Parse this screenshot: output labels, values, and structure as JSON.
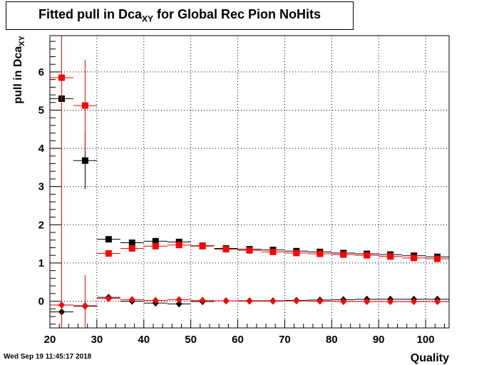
{
  "title": {
    "prefix": "Fitted pull in Dca",
    "sub": "XY",
    "suffix": " for Global Rec Pion NoHits"
  },
  "timestamp": "Wed Sep 19 11:45:17 2018",
  "chart_data": {
    "type": "scatter",
    "title": "Fitted pull in Dca_XY for Global Rec Pion NoHits",
    "xlabel": "Quality",
    "ylabel": "pull in Dca",
    "ylabel_sub": "XY",
    "xlim": [
      20,
      105
    ],
    "ylim": [
      -0.7,
      6.95
    ],
    "xticks": [
      20,
      30,
      40,
      50,
      60,
      70,
      80,
      90,
      100
    ],
    "yticks": [
      0,
      1,
      2,
      3,
      4,
      5,
      6
    ],
    "grid": true,
    "colors": {
      "black": "#000000",
      "red": "#ff0000"
    },
    "series": [
      {
        "marker": "square",
        "color": "#000000",
        "points": [
          {
            "x": 22.5,
            "y": 5.3,
            "err": 0.0
          },
          {
            "x": 27.5,
            "y": 3.68,
            "err": 0.75
          },
          {
            "x": 32.5,
            "y": 1.62,
            "err": 0.08
          },
          {
            "x": 37.5,
            "y": 1.53,
            "err": 0.05
          },
          {
            "x": 42.5,
            "y": 1.57,
            "err": 0.04
          },
          {
            "x": 47.5,
            "y": 1.55,
            "err": 0.03
          },
          {
            "x": 52.5,
            "y": 1.45,
            "err": 0.03
          },
          {
            "x": 57.5,
            "y": 1.38,
            "err": 0.02
          },
          {
            "x": 62.5,
            "y": 1.36,
            "err": 0.02
          },
          {
            "x": 67.5,
            "y": 1.34,
            "err": 0.02
          },
          {
            "x": 72.5,
            "y": 1.31,
            "err": 0.02
          },
          {
            "x": 77.5,
            "y": 1.29,
            "err": 0.02
          },
          {
            "x": 82.5,
            "y": 1.26,
            "err": 0.02
          },
          {
            "x": 87.5,
            "y": 1.24,
            "err": 0.02
          },
          {
            "x": 92.5,
            "y": 1.22,
            "err": 0.02
          },
          {
            "x": 97.5,
            "y": 1.19,
            "err": 0.02
          },
          {
            "x": 102.5,
            "y": 1.16,
            "err": 0.02
          }
        ]
      },
      {
        "marker": "square",
        "color": "#ff0000",
        "points": [
          {
            "x": 22.5,
            "y": 5.85,
            "err": 3.2
          },
          {
            "x": 27.5,
            "y": 5.12,
            "err": 1.2
          },
          {
            "x": 32.5,
            "y": 1.25,
            "err": 0.04
          },
          {
            "x": 37.5,
            "y": 1.38,
            "err": 0.04
          },
          {
            "x": 42.5,
            "y": 1.44,
            "err": 0.03
          },
          {
            "x": 47.5,
            "y": 1.47,
            "err": 0.03
          },
          {
            "x": 52.5,
            "y": 1.44,
            "err": 0.02
          },
          {
            "x": 57.5,
            "y": 1.36,
            "err": 0.02
          },
          {
            "x": 62.5,
            "y": 1.33,
            "err": 0.02
          },
          {
            "x": 67.5,
            "y": 1.29,
            "err": 0.02
          },
          {
            "x": 72.5,
            "y": 1.26,
            "err": 0.02
          },
          {
            "x": 77.5,
            "y": 1.24,
            "err": 0.02
          },
          {
            "x": 82.5,
            "y": 1.22,
            "err": 0.02
          },
          {
            "x": 87.5,
            "y": 1.2,
            "err": 0.02
          },
          {
            "x": 92.5,
            "y": 1.17,
            "err": 0.02
          },
          {
            "x": 97.5,
            "y": 1.13,
            "err": 0.02
          },
          {
            "x": 102.5,
            "y": 1.11,
            "err": 0.02
          }
        ]
      },
      {
        "marker": "diamond",
        "color": "#000000",
        "points": [
          {
            "x": 22.5,
            "y": -0.28,
            "err": 0.0
          },
          {
            "x": 27.5,
            "y": -0.13,
            "err": 0.12
          },
          {
            "x": 32.5,
            "y": 0.1,
            "err": 0.04
          },
          {
            "x": 37.5,
            "y": 0.0,
            "err": 0.03
          },
          {
            "x": 42.5,
            "y": -0.05,
            "err": 0.03
          },
          {
            "x": 47.5,
            "y": -0.07,
            "err": 0.02
          },
          {
            "x": 52.5,
            "y": -0.01,
            "err": 0.02
          },
          {
            "x": 57.5,
            "y": 0.01,
            "err": 0.02
          },
          {
            "x": 62.5,
            "y": 0.01,
            "err": 0.02
          },
          {
            "x": 67.5,
            "y": 0.01,
            "err": 0.02
          },
          {
            "x": 72.5,
            "y": 0.02,
            "err": 0.02
          },
          {
            "x": 77.5,
            "y": 0.03,
            "err": 0.02
          },
          {
            "x": 82.5,
            "y": 0.04,
            "err": 0.02
          },
          {
            "x": 87.5,
            "y": 0.05,
            "err": 0.02
          },
          {
            "x": 92.5,
            "y": 0.05,
            "err": 0.02
          },
          {
            "x": 97.5,
            "y": 0.05,
            "err": 0.02
          },
          {
            "x": 102.5,
            "y": 0.05,
            "err": 0.02
          }
        ]
      },
      {
        "marker": "diamond",
        "color": "#ff0000",
        "points": [
          {
            "x": 22.5,
            "y": -0.1,
            "err": 3.6
          },
          {
            "x": 27.5,
            "y": -0.12,
            "err": 0.8
          },
          {
            "x": 32.5,
            "y": 0.07,
            "err": 0.03
          },
          {
            "x": 37.5,
            "y": 0.04,
            "err": 0.03
          },
          {
            "x": 42.5,
            "y": 0.02,
            "err": 0.02
          },
          {
            "x": 47.5,
            "y": 0.04,
            "err": 0.02
          },
          {
            "x": 52.5,
            "y": 0.02,
            "err": 0.02
          },
          {
            "x": 57.5,
            "y": 0.01,
            "err": 0.02
          },
          {
            "x": 62.5,
            "y": 0.0,
            "err": 0.02
          },
          {
            "x": 67.5,
            "y": 0.0,
            "err": 0.02
          },
          {
            "x": 72.5,
            "y": 0.01,
            "err": 0.02
          },
          {
            "x": 77.5,
            "y": 0.0,
            "err": 0.02
          },
          {
            "x": 82.5,
            "y": -0.01,
            "err": 0.02
          },
          {
            "x": 87.5,
            "y": -0.01,
            "err": 0.02
          },
          {
            "x": 92.5,
            "y": -0.01,
            "err": 0.02
          },
          {
            "x": 97.5,
            "y": -0.01,
            "err": 0.02
          },
          {
            "x": 102.5,
            "y": -0.01,
            "err": 0.02
          }
        ]
      }
    ]
  }
}
